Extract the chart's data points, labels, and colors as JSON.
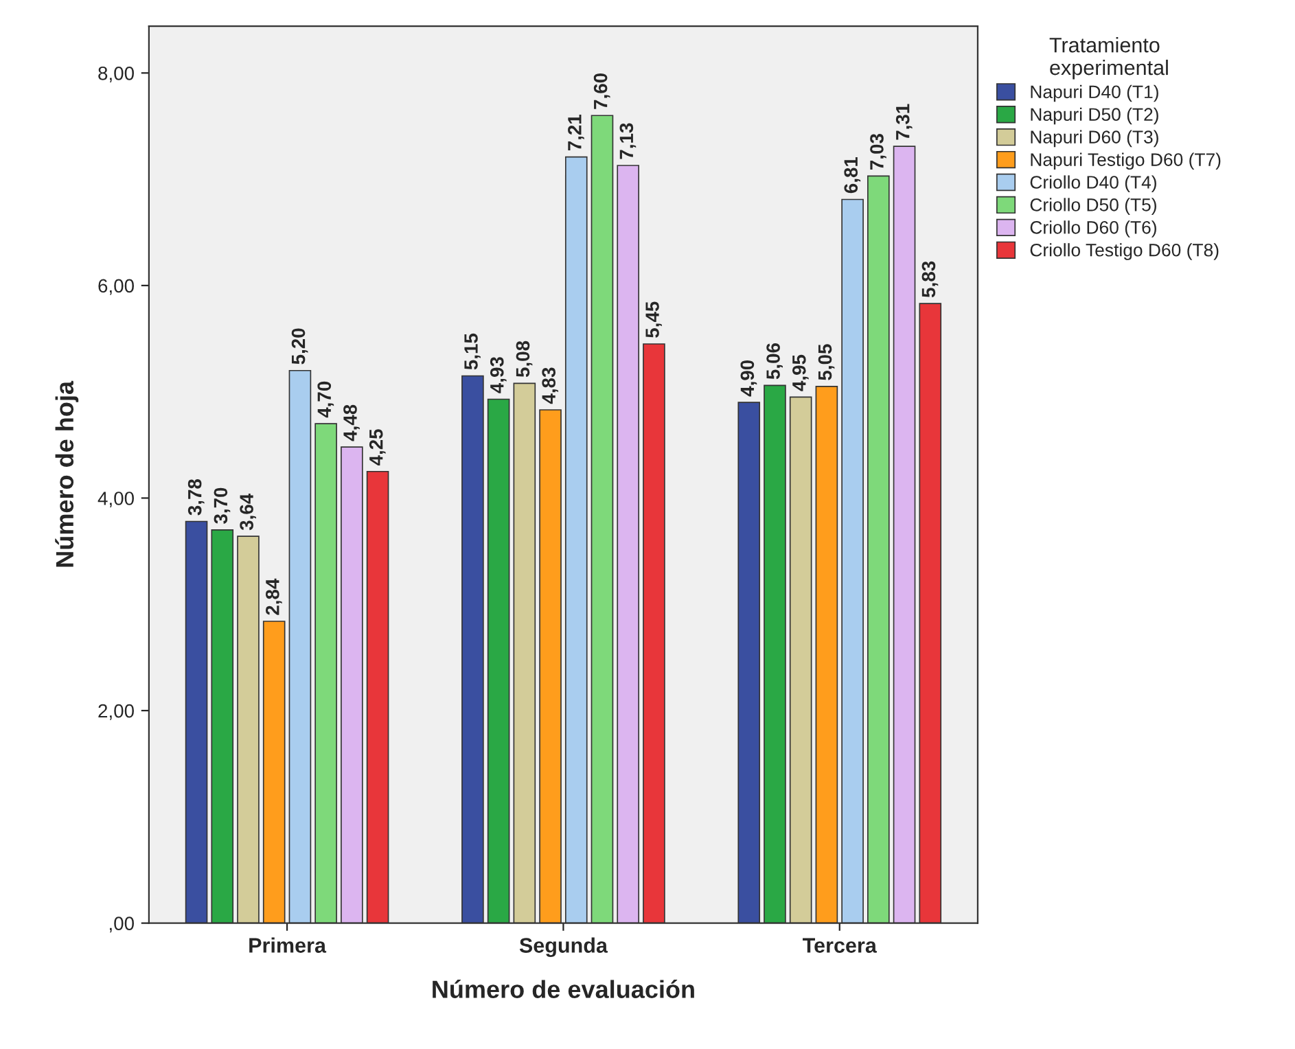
{
  "chart_data": {
    "type": "bar",
    "xlabel": "Número de evaluación",
    "ylabel": "Número de hoja",
    "legend_title": "Tratamiento\nexperimental",
    "categories": [
      "Primera",
      "Segunda",
      "Tercera"
    ],
    "series": [
      {
        "name": "Napuri D40 (T1)",
        "color": "#3a4fa0",
        "values": [
          3.78,
          5.15,
          4.9
        ],
        "value_labels": [
          "3,78",
          "5,15",
          "4,90"
        ]
      },
      {
        "name": "Napuri D50 (T2)",
        "color": "#2aa845",
        "values": [
          3.7,
          4.93,
          5.06
        ],
        "value_labels": [
          "3,70",
          "4,93",
          "5,06"
        ]
      },
      {
        "name": "Napuri D60 (T3)",
        "color": "#d3cc99",
        "values": [
          3.64,
          5.08,
          4.95
        ],
        "value_labels": [
          "3,64",
          "5,08",
          "4,95"
        ]
      },
      {
        "name": "Napuri Testigo D60 (T7)",
        "color": "#ff9d1c",
        "values": [
          2.84,
          4.83,
          5.05
        ],
        "value_labels": [
          "2,84",
          "4,83",
          "5,05"
        ]
      },
      {
        "name": "Criollo D40 (T4)",
        "color": "#a9cdef",
        "values": [
          5.2,
          7.21,
          6.81
        ],
        "value_labels": [
          "5,20",
          "7,21",
          "6,81"
        ]
      },
      {
        "name": "Criollo D50 (T5)",
        "color": "#7ed97a",
        "values": [
          4.7,
          7.6,
          7.03
        ],
        "value_labels": [
          "4,70",
          "7,60",
          "7,03"
        ]
      },
      {
        "name": "Criollo D60 (T6)",
        "color": "#dcb5f0",
        "values": [
          4.48,
          7.13,
          7.31
        ],
        "value_labels": [
          "4,48",
          "7,13",
          "7,31"
        ]
      },
      {
        "name": "Criollo Testigo D60 (T8)",
        "color": "#e8363a",
        "values": [
          4.25,
          5.45,
          5.83
        ],
        "value_labels": [
          "4,25",
          "5,45",
          "5,83"
        ]
      }
    ],
    "ylim": [
      0,
      8.44
    ],
    "yticks": [
      {
        "value": 0,
        "label": ",00"
      },
      {
        "value": 2,
        "label": "2,00"
      },
      {
        "value": 4,
        "label": "4,00"
      },
      {
        "value": 6,
        "label": "6,00"
      },
      {
        "value": 8,
        "label": "8,00"
      }
    ],
    "grid": false,
    "legend": "right"
  }
}
